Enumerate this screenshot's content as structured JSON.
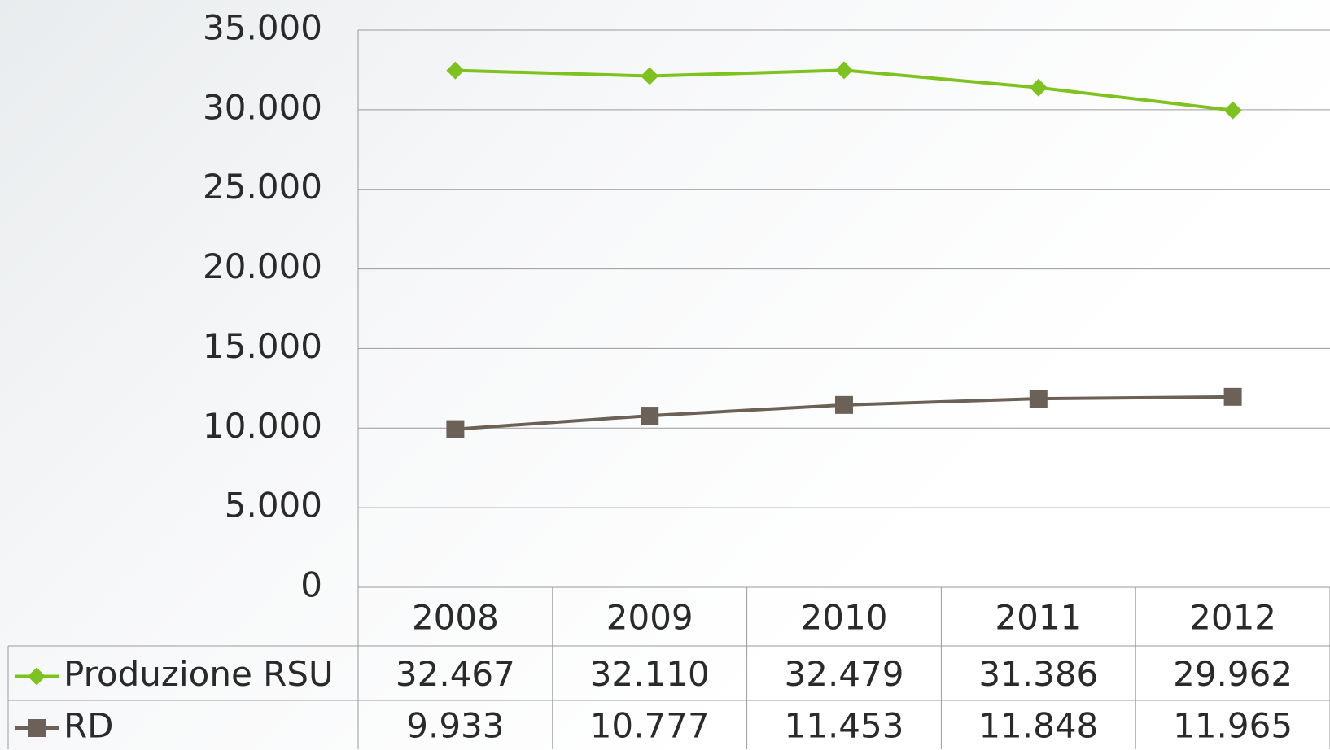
{
  "chart_data": {
    "type": "line",
    "categories": [
      "2008",
      "2009",
      "2010",
      "2011",
      "2012"
    ],
    "series": [
      {
        "name": "Produzione RSU",
        "color": "#7dc21e",
        "marker": "diamond",
        "values": [
          32467,
          32110,
          32479,
          31386,
          29962
        ],
        "value_labels": [
          "32.467",
          "32.110",
          "32.479",
          "31.386",
          "29.962"
        ]
      },
      {
        "name": "RD",
        "color": "#6b6156",
        "marker": "square",
        "values": [
          9933,
          10777,
          11453,
          11848,
          11965
        ],
        "value_labels": [
          "9.933",
          "10.777",
          "11.453",
          "11.848",
          "11.965"
        ]
      }
    ],
    "ylim": [
      0,
      35000
    ],
    "yticks": [
      0,
      {
        "value": 5000,
        "label": "5.000"
      },
      {
        "value": 10000,
        "label": "10.000"
      },
      {
        "value": 15000,
        "label": "15.000"
      },
      {
        "value": 20000,
        "label": "20.000"
      },
      {
        "value": 25000,
        "label": "25.000"
      },
      {
        "value": 30000,
        "label": "30.000"
      },
      {
        "value": 35000,
        "label": "35.000"
      }
    ],
    "grid": true,
    "data_table": true
  }
}
